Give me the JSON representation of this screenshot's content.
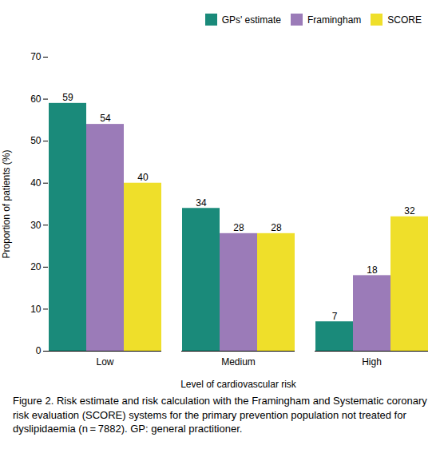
{
  "chart_data": {
    "type": "bar",
    "categories": [
      "Low",
      "Medium",
      "High"
    ],
    "series": [
      {
        "name": "GPs' estimate",
        "color": "#1a8a7a",
        "values": [
          59,
          34,
          7
        ]
      },
      {
        "name": "Framingham",
        "color": "#9b7bb8",
        "values": [
          54,
          28,
          18
        ]
      },
      {
        "name": "SCORE",
        "color": "#efdf2a",
        "values": [
          40,
          28,
          32
        ]
      }
    ],
    "xlabel": "Level of cardiovascular risk",
    "ylabel": "Proportion of patients (%)",
    "ylim": [
      0,
      70
    ],
    "yticks": [
      0,
      10,
      20,
      30,
      40,
      50,
      60,
      70
    ],
    "grid": false,
    "legend": "upper right",
    "data_labels": true,
    "caption": "Figure 2. Risk estimate and risk calculation with the Framingham and Systematic coronary risk evaluation (SCORE) systems for the primary prevention population not treated for dyslipidaemia (n = 7882). GP: general practitioner."
  }
}
